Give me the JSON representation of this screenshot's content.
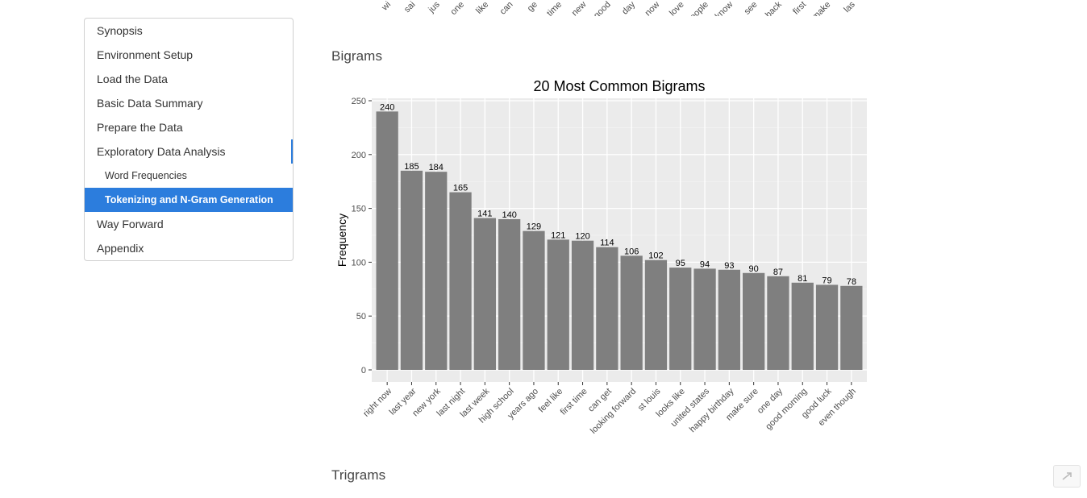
{
  "toc": {
    "items": [
      {
        "label": "Synopsis",
        "level": 1,
        "active": false
      },
      {
        "label": "Environment Setup",
        "level": 1,
        "active": false
      },
      {
        "label": "Load the Data",
        "level": 1,
        "active": false
      },
      {
        "label": "Basic Data Summary",
        "level": 1,
        "active": false
      },
      {
        "label": "Prepare the Data",
        "level": 1,
        "active": false
      },
      {
        "label": "Exploratory Data Analysis",
        "level": 1,
        "active": false
      },
      {
        "label": "Word Frequencies",
        "level": 2,
        "active": false
      },
      {
        "label": "Tokenizing and N-Gram Generation",
        "level": 2,
        "active": true
      },
      {
        "label": "Way Forward",
        "level": 1,
        "active": false
      },
      {
        "label": "Appendix",
        "level": 1,
        "active": false
      }
    ],
    "accent_color": "#2c7ddd"
  },
  "sections": {
    "bigrams_heading": "Bigrams",
    "trigrams_heading": "Trigrams"
  },
  "top_chart": {
    "tick_labels": [
      "wi",
      "sai",
      "jus",
      "one",
      "like",
      "can",
      "ge",
      "time",
      "new",
      "good",
      "day",
      "now",
      "love",
      "people",
      "know",
      "see",
      "back",
      "first",
      "make",
      "las"
    ]
  },
  "chart_data": {
    "type": "bar",
    "title": "20 Most Common Bigrams",
    "xlabel": "",
    "ylabel": "Frequency",
    "ylim": [
      0,
      252
    ],
    "yticks": [
      0,
      50,
      100,
      150,
      200,
      250
    ],
    "categories": [
      "right now",
      "last year",
      "new york",
      "last night",
      "last week",
      "high school",
      "years ago",
      "feel like",
      "first time",
      "can get",
      "looking forward",
      "st louis",
      "looks like",
      "united states",
      "happy birthday",
      "make sure",
      "one day",
      "good morning",
      "good luck",
      "even though"
    ],
    "values": [
      240,
      185,
      184,
      165,
      141,
      140,
      129,
      121,
      120,
      114,
      106,
      102,
      95,
      94,
      93,
      90,
      87,
      81,
      79,
      78
    ],
    "bar_color": "#7f7f7f",
    "panel_color": "#ebebeb",
    "grid": true
  },
  "scroll_top": {
    "icon": "arrow-up-icon"
  }
}
